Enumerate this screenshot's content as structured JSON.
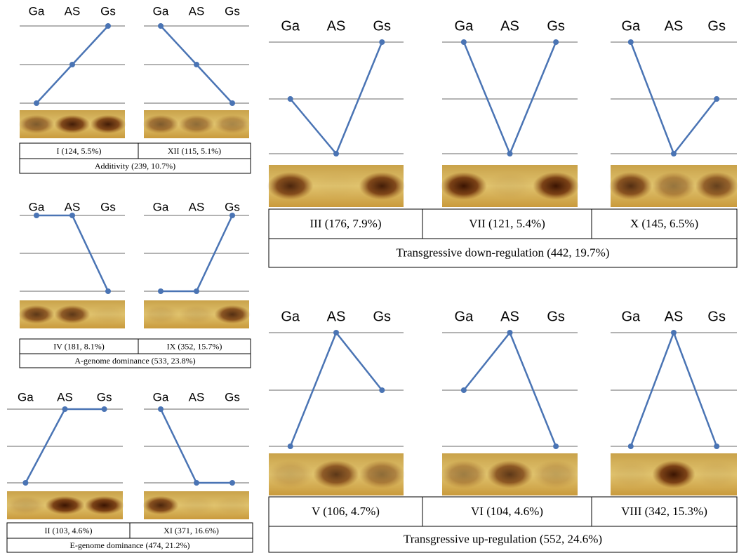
{
  "genotypes": [
    "Ga",
    "AS",
    "Gs"
  ],
  "groups": [
    {
      "label": "Additivity (239, 10.7%)",
      "panels": [
        {
          "label": "I (124, 5.5%)",
          "levels": [
            0,
            1,
            2
          ]
        },
        {
          "label": "XII (115, 5.1%)",
          "levels": [
            2,
            1,
            0
          ]
        }
      ]
    },
    {
      "label": "A-genome dominance (533, 23.8%)",
      "panels": [
        {
          "label": "IV (181, 8.1%)",
          "levels": [
            2,
            2,
            0
          ]
        },
        {
          "label": "IX (352, 15.7%)",
          "levels": [
            0,
            0,
            2
          ]
        }
      ]
    },
    {
      "label": "E-genome dominance (474, 21.2%)",
      "panels": [
        {
          "label": "II (103, 4.6%)",
          "levels": [
            0,
            2,
            2
          ]
        },
        {
          "label": "XI (371, 16.6%)",
          "levels": [
            2,
            0,
            0
          ]
        }
      ]
    },
    {
      "label": "Transgressive down-regulation (442, 19.7%)",
      "panels": [
        {
          "label": "III (176, 7.9%)",
          "levels": [
            1,
            0,
            2
          ]
        },
        {
          "label": "VII (121, 5.4%)",
          "levels": [
            2,
            0,
            2
          ]
        },
        {
          "label": "X (145, 6.5%)",
          "levels": [
            2,
            0,
            1
          ]
        }
      ]
    },
    {
      "label": "Transgressive up-regulation (552, 24.6%)",
      "panels": [
        {
          "label": "V (106, 4.7%)",
          "levels": [
            0,
            2,
            1
          ]
        },
        {
          "label": "VI (104, 4.6%)",
          "levels": [
            1,
            2,
            0
          ]
        },
        {
          "label": "VIII (342, 15.3%)",
          "levels": [
            0,
            2,
            0
          ]
        }
      ]
    }
  ]
}
